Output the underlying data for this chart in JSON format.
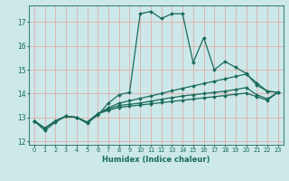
{
  "xlabel": "Humidex (Indice chaleur)",
  "background_color": "#cce8e8",
  "grid_color": "#e8a0a0",
  "line_color": "#1a6b5a",
  "xlim": [
    -0.5,
    23.5
  ],
  "ylim": [
    11.85,
    17.7
  ],
  "yticks": [
    12,
    13,
    14,
    15,
    16,
    17
  ],
  "line1_y": [
    12.85,
    12.45,
    12.8,
    13.05,
    13.0,
    12.75,
    13.1,
    13.6,
    13.95,
    14.05,
    17.35,
    17.45,
    17.15,
    17.35,
    17.35,
    15.3,
    16.35,
    15.0,
    15.35,
    15.1,
    14.85,
    14.35,
    14.1,
    14.05
  ],
  "line2_y": [
    12.85,
    12.55,
    12.85,
    13.05,
    13.0,
    12.8,
    13.15,
    13.4,
    13.6,
    13.7,
    13.8,
    13.9,
    14.0,
    14.12,
    14.22,
    14.32,
    14.42,
    14.52,
    14.62,
    14.72,
    14.82,
    14.45,
    14.1,
    14.05
  ],
  "line3_y": [
    12.85,
    12.55,
    12.85,
    13.05,
    13.0,
    12.8,
    13.15,
    13.35,
    13.5,
    13.55,
    13.6,
    13.68,
    13.76,
    13.83,
    13.9,
    13.95,
    14.0,
    14.05,
    14.1,
    14.17,
    14.25,
    13.95,
    13.78,
    14.05
  ],
  "line4_y": [
    12.85,
    12.55,
    12.85,
    13.05,
    13.0,
    12.8,
    13.15,
    13.3,
    13.42,
    13.47,
    13.52,
    13.57,
    13.62,
    13.67,
    13.72,
    13.77,
    13.82,
    13.87,
    13.92,
    13.97,
    14.02,
    13.87,
    13.72,
    14.05
  ]
}
